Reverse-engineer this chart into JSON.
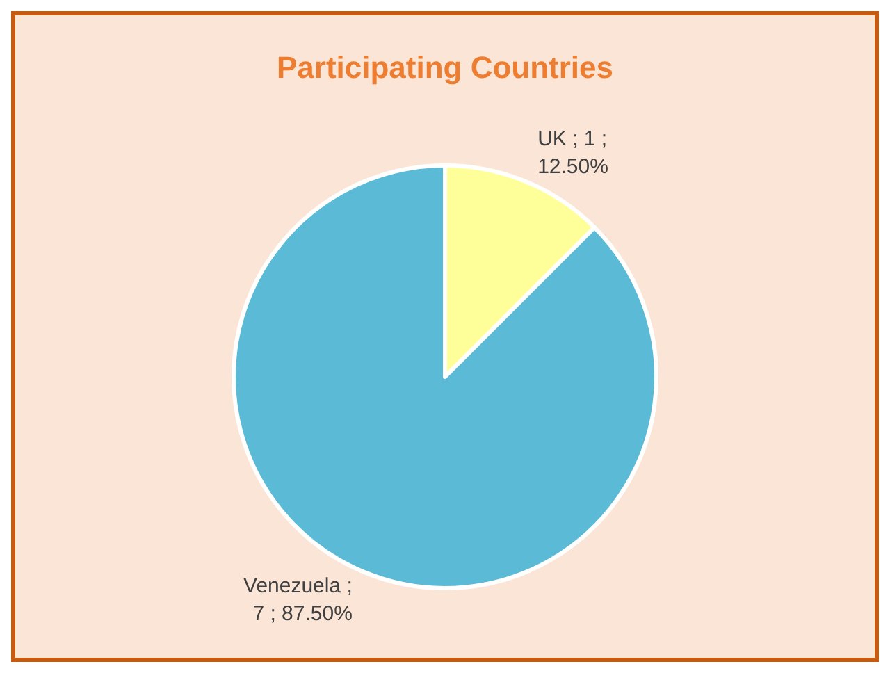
{
  "chart_data": {
    "type": "pie",
    "title": "Participating Countries",
    "categories": [
      "UK",
      "Venezuela"
    ],
    "values": [
      1,
      7
    ],
    "colors": [
      "#ffff99",
      "#5bbad5"
    ],
    "value_labels": [
      "; 1 ; 12.50%",
      "; 7 ; 87.50%"
    ]
  }
}
